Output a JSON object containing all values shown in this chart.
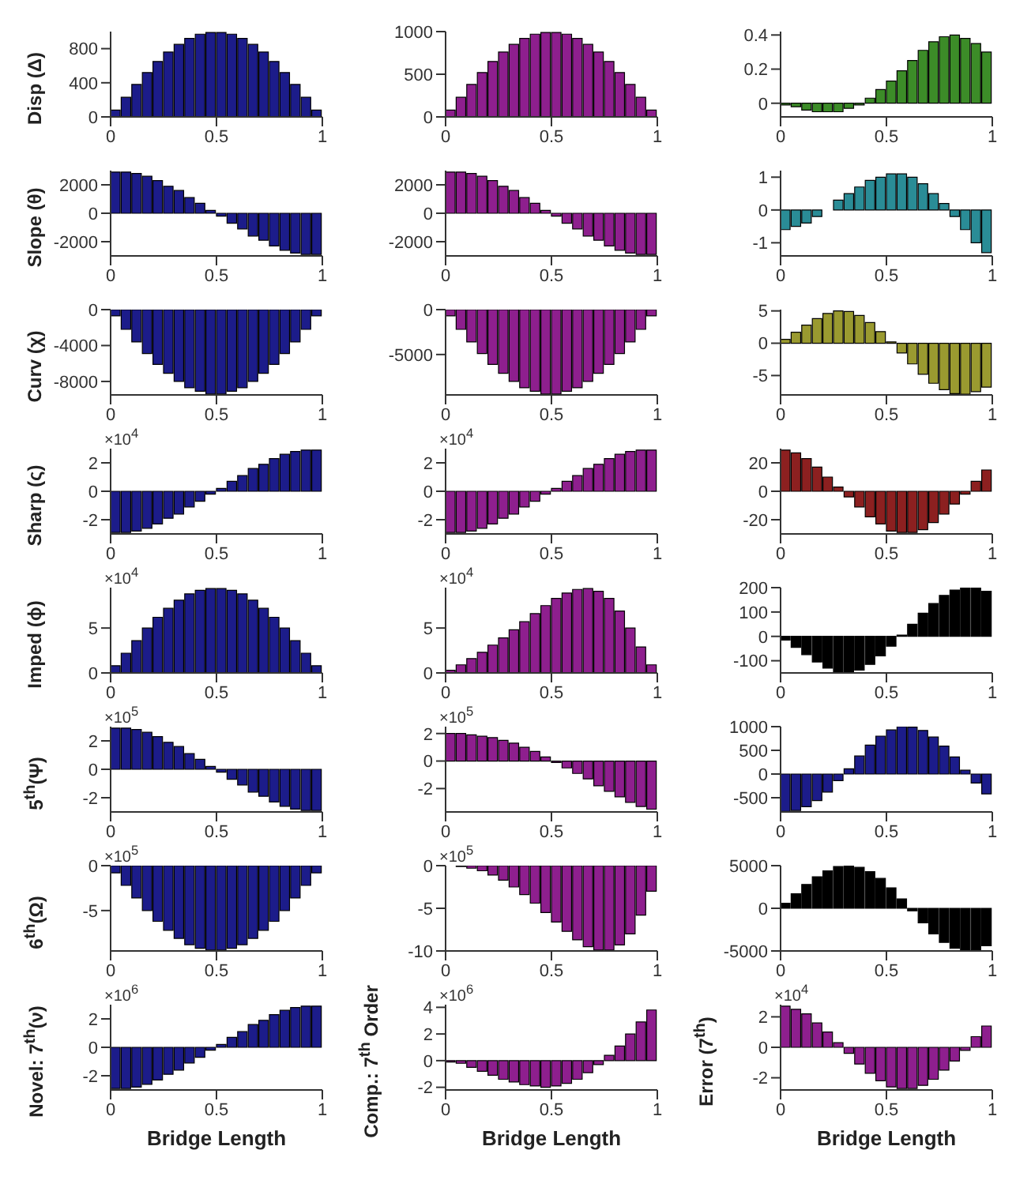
{
  "chart_data": [
    {
      "type": "bar",
      "ylabel": "Disp (Δ)",
      "x": [
        0.025,
        0.075,
        0.125,
        0.175,
        0.225,
        0.275,
        0.325,
        0.375,
        0.425,
        0.475,
        0.525,
        0.575,
        0.625,
        0.675,
        0.725,
        0.775,
        0.825,
        0.875,
        0.925,
        0.975
      ],
      "values": [
        80,
        230,
        380,
        520,
        650,
        760,
        850,
        920,
        970,
        990,
        990,
        970,
        920,
        850,
        760,
        650,
        520,
        380,
        230,
        80
      ],
      "color": "#1c1c8a",
      "xlim": [
        0,
        1
      ],
      "xticks": [
        0,
        0.5,
        1
      ],
      "ylim": [
        0,
        1000
      ],
      "yticks": [
        0,
        400,
        800
      ]
    },
    {
      "type": "bar",
      "x": [
        0.025,
        0.075,
        0.125,
        0.175,
        0.225,
        0.275,
        0.325,
        0.375,
        0.425,
        0.475,
        0.525,
        0.575,
        0.625,
        0.675,
        0.725,
        0.775,
        0.825,
        0.875,
        0.925,
        0.975
      ],
      "values": [
        80,
        230,
        380,
        520,
        650,
        760,
        850,
        920,
        970,
        990,
        990,
        970,
        920,
        850,
        760,
        650,
        520,
        380,
        230,
        80
      ],
      "color": "#8e1f8e",
      "xlim": [
        0,
        1
      ],
      "xticks": [
        0,
        0.5,
        1
      ],
      "ylim": [
        0,
        1000
      ],
      "yticks": [
        0,
        500,
        1000
      ]
    },
    {
      "type": "bar",
      "x": [
        0.025,
        0.075,
        0.125,
        0.175,
        0.225,
        0.275,
        0.325,
        0.375,
        0.425,
        0.475,
        0.525,
        0.575,
        0.625,
        0.675,
        0.725,
        0.775,
        0.825,
        0.875,
        0.925,
        0.975
      ],
      "values": [
        -0.01,
        -0.02,
        -0.04,
        -0.05,
        -0.05,
        -0.05,
        -0.03,
        -0.01,
        0.03,
        0.08,
        0.13,
        0.19,
        0.25,
        0.31,
        0.36,
        0.39,
        0.4,
        0.38,
        0.35,
        0.3
      ],
      "color": "#3c8c28",
      "xlim": [
        0,
        1
      ],
      "xticks": [
        0,
        0.5,
        1
      ],
      "ylim": [
        -0.08,
        0.42
      ],
      "yticks": [
        0,
        0.2,
        0.4
      ]
    },
    {
      "type": "bar",
      "ylabel": "Slope (θ)",
      "x": [
        0.025,
        0.075,
        0.125,
        0.175,
        0.225,
        0.275,
        0.325,
        0.375,
        0.425,
        0.475,
        0.525,
        0.575,
        0.625,
        0.675,
        0.725,
        0.775,
        0.825,
        0.875,
        0.925,
        0.975
      ],
      "values": [
        2900,
        2900,
        2800,
        2600,
        2300,
        1900,
        1600,
        1100,
        700,
        200,
        -200,
        -700,
        -1100,
        -1600,
        -1900,
        -2300,
        -2600,
        -2800,
        -2900,
        -2900
      ],
      "color": "#1c1c8a",
      "xlim": [
        0,
        1
      ],
      "xticks": [
        0,
        0.5,
        1
      ],
      "ylim": [
        -3000,
        3000
      ],
      "yticks": [
        -2000,
        0,
        2000
      ]
    },
    {
      "type": "bar",
      "x": [
        0.025,
        0.075,
        0.125,
        0.175,
        0.225,
        0.275,
        0.325,
        0.375,
        0.425,
        0.475,
        0.525,
        0.575,
        0.625,
        0.675,
        0.725,
        0.775,
        0.825,
        0.875,
        0.925,
        0.975
      ],
      "values": [
        2900,
        2900,
        2800,
        2600,
        2300,
        1900,
        1600,
        1100,
        700,
        200,
        -200,
        -700,
        -1100,
        -1600,
        -1900,
        -2300,
        -2600,
        -2800,
        -2900,
        -2900
      ],
      "color": "#8e1f8e",
      "xlim": [
        0,
        1
      ],
      "xticks": [
        0,
        0.5,
        1
      ],
      "ylim": [
        -3000,
        3000
      ],
      "yticks": [
        -2000,
        0,
        2000
      ]
    },
    {
      "type": "bar",
      "x": [
        0.025,
        0.075,
        0.125,
        0.175,
        0.225,
        0.275,
        0.325,
        0.375,
        0.425,
        0.475,
        0.525,
        0.575,
        0.625,
        0.675,
        0.725,
        0.775,
        0.825,
        0.875,
        0.925,
        0.975
      ],
      "values": [
        -0.6,
        -0.5,
        -0.4,
        -0.2,
        0,
        0.3,
        0.5,
        0.7,
        0.9,
        1,
        1.1,
        1.1,
        1,
        0.8,
        0.5,
        0.2,
        -0.2,
        -0.6,
        -1,
        -1.3
      ],
      "color": "#2a8c96",
      "xlim": [
        0,
        1
      ],
      "xticks": [
        0,
        0.5,
        1
      ],
      "ylim": [
        -1.4,
        1.2
      ],
      "yticks": [
        -1,
        0,
        1
      ]
    },
    {
      "type": "bar",
      "ylabel": "Curv (χ)",
      "x": [
        0.025,
        0.075,
        0.125,
        0.175,
        0.225,
        0.275,
        0.325,
        0.375,
        0.425,
        0.475,
        0.525,
        0.575,
        0.625,
        0.675,
        0.725,
        0.775,
        0.825,
        0.875,
        0.925,
        0.975
      ],
      "values": [
        -700,
        -2200,
        -3600,
        -4900,
        -6100,
        -7100,
        -8000,
        -8700,
        -9100,
        -9400,
        -9400,
        -9100,
        -8700,
        -8000,
        -7100,
        -6100,
        -4900,
        -3600,
        -2200,
        -700
      ],
      "color": "#1c1c8a",
      "xlim": [
        0,
        1
      ],
      "xticks": [
        0,
        0.5,
        1
      ],
      "ylim": [
        -9500,
        0
      ],
      "yticks": [
        -8000,
        -4000,
        0
      ]
    },
    {
      "type": "bar",
      "x": [
        0.025,
        0.075,
        0.125,
        0.175,
        0.225,
        0.275,
        0.325,
        0.375,
        0.425,
        0.475,
        0.525,
        0.575,
        0.625,
        0.675,
        0.725,
        0.775,
        0.825,
        0.875,
        0.925,
        0.975
      ],
      "values": [
        -700,
        -2200,
        -3600,
        -4900,
        -6100,
        -7100,
        -8000,
        -8700,
        -9100,
        -9400,
        -9400,
        -9100,
        -8700,
        -8000,
        -7100,
        -6100,
        -4900,
        -3600,
        -2200,
        -700
      ],
      "color": "#8e1f8e",
      "xlim": [
        0,
        1
      ],
      "xticks": [
        0,
        0.5,
        1
      ],
      "ylim": [
        -9500,
        0
      ],
      "yticks": [
        -5000,
        0
      ]
    },
    {
      "type": "bar",
      "x": [
        0.025,
        0.075,
        0.125,
        0.175,
        0.225,
        0.275,
        0.325,
        0.375,
        0.425,
        0.475,
        0.525,
        0.575,
        0.625,
        0.675,
        0.725,
        0.775,
        0.825,
        0.875,
        0.925,
        0.975
      ],
      "values": [
        0.6,
        1.7,
        2.8,
        3.8,
        4.6,
        5,
        4.9,
        4.3,
        3.2,
        1.8,
        0.2,
        -1.5,
        -3.2,
        -4.8,
        -6.2,
        -7.2,
        -7.8,
        -7.9,
        -7.5,
        -6.8
      ],
      "color": "#9a9a30",
      "xlim": [
        0,
        1
      ],
      "xticks": [
        0,
        0.5,
        1
      ],
      "ylim": [
        -8,
        5.2
      ],
      "yticks": [
        -5,
        0,
        5
      ]
    },
    {
      "type": "bar",
      "ylabel": "Sharp (ς)",
      "annotations": [
        "×10$^{4}$"
      ],
      "x": [
        0.025,
        0.075,
        0.125,
        0.175,
        0.225,
        0.275,
        0.325,
        0.375,
        0.425,
        0.475,
        0.525,
        0.575,
        0.625,
        0.675,
        0.725,
        0.775,
        0.825,
        0.875,
        0.925,
        0.975
      ],
      "values": [
        -2.9,
        -2.9,
        -2.8,
        -2.6,
        -2.3,
        -1.9,
        -1.6,
        -1.1,
        -0.7,
        -0.2,
        0.2,
        0.7,
        1.1,
        1.6,
        1.9,
        2.3,
        2.6,
        2.8,
        2.9,
        2.9
      ],
      "color": "#1c1c8a",
      "xlim": [
        0,
        1
      ],
      "xticks": [
        0,
        0.5,
        1
      ],
      "ylim": [
        -3,
        3
      ],
      "yticks": [
        -2,
        0,
        2
      ]
    },
    {
      "type": "bar",
      "annotations": [
        "×10$^{4}$"
      ],
      "x": [
        0.025,
        0.075,
        0.125,
        0.175,
        0.225,
        0.275,
        0.325,
        0.375,
        0.425,
        0.475,
        0.525,
        0.575,
        0.625,
        0.675,
        0.725,
        0.775,
        0.825,
        0.875,
        0.925,
        0.975
      ],
      "values": [
        -2.9,
        -2.9,
        -2.8,
        -2.6,
        -2.3,
        -1.9,
        -1.6,
        -1.1,
        -0.7,
        -0.2,
        0.2,
        0.7,
        1.1,
        1.6,
        1.9,
        2.3,
        2.6,
        2.8,
        2.9,
        2.9
      ],
      "color": "#8e1f8e",
      "xlim": [
        0,
        1
      ],
      "xticks": [
        0,
        0.5,
        1
      ],
      "ylim": [
        -3,
        3
      ],
      "yticks": [
        -2,
        0,
        2
      ]
    },
    {
      "type": "bar",
      "x": [
        0.025,
        0.075,
        0.125,
        0.175,
        0.225,
        0.275,
        0.325,
        0.375,
        0.425,
        0.475,
        0.525,
        0.575,
        0.625,
        0.675,
        0.725,
        0.775,
        0.825,
        0.875,
        0.925,
        0.975
      ],
      "values": [
        29,
        27,
        23,
        17,
        10,
        3,
        -4,
        -11,
        -18,
        -23,
        -28,
        -29,
        -29,
        -27,
        -22,
        -16,
        -9,
        -2,
        7,
        15
      ],
      "color": "#8c2020",
      "xlim": [
        0,
        1
      ],
      "xticks": [
        0,
        0.5,
        1
      ],
      "ylim": [
        -30,
        30
      ],
      "yticks": [
        -20,
        0,
        20
      ]
    },
    {
      "type": "bar",
      "ylabel": "Imped (ϕ)",
      "annotations": [
        "×10$^{4}$"
      ],
      "x": [
        0.025,
        0.075,
        0.125,
        0.175,
        0.225,
        0.275,
        0.325,
        0.375,
        0.425,
        0.475,
        0.525,
        0.575,
        0.625,
        0.675,
        0.725,
        0.775,
        0.825,
        0.875,
        0.925,
        0.975
      ],
      "values": [
        0.8,
        2.2,
        3.6,
        5,
        6.2,
        7.2,
        8.1,
        8.8,
        9.2,
        9.4,
        9.4,
        9.2,
        8.8,
        8.1,
        7.2,
        6.2,
        5,
        3.6,
        2.2,
        0.8
      ],
      "color": "#1c1c8a",
      "xlim": [
        0,
        1
      ],
      "xticks": [
        0,
        0.5,
        1
      ],
      "ylim": [
        0,
        9.5
      ],
      "yticks": [
        0,
        5
      ]
    },
    {
      "type": "bar",
      "annotations": [
        "×10$^{4}$"
      ],
      "x": [
        0.025,
        0.075,
        0.125,
        0.175,
        0.225,
        0.275,
        0.325,
        0.375,
        0.425,
        0.475,
        0.525,
        0.575,
        0.625,
        0.675,
        0.725,
        0.775,
        0.825,
        0.875,
        0.925,
        0.975
      ],
      "values": [
        0.3,
        0.9,
        1.6,
        2.3,
        3.1,
        3.9,
        4.8,
        5.7,
        6.6,
        7.5,
        8.3,
        8.9,
        9.3,
        9.4,
        9.1,
        8.3,
        6.9,
        5,
        2.9,
        0.9
      ],
      "color": "#8e1f8e",
      "xlim": [
        0,
        1
      ],
      "xticks": [
        0,
        0.5,
        1
      ],
      "ylim": [
        0,
        9.5
      ],
      "yticks": [
        0,
        5
      ]
    },
    {
      "type": "bar",
      "x": [
        0.025,
        0.075,
        0.125,
        0.175,
        0.225,
        0.275,
        0.325,
        0.375,
        0.425,
        0.475,
        0.525,
        0.575,
        0.625,
        0.675,
        0.725,
        0.775,
        0.825,
        0.875,
        0.925,
        0.975
      ],
      "values": [
        -15,
        -45,
        -75,
        -105,
        -130,
        -145,
        -148,
        -138,
        -115,
        -80,
        -40,
        5,
        50,
        95,
        135,
        168,
        190,
        200,
        198,
        185
      ],
      "color": "#000000",
      "xlim": [
        0,
        1
      ],
      "xticks": [
        0,
        0.5,
        1
      ],
      "ylim": [
        -150,
        200
      ],
      "yticks": [
        -100,
        0,
        100,
        200
      ]
    },
    {
      "type": "bar",
      "ylabel": "5$^{th}$(Ψ)",
      "annotations": [
        "×10$^{5}$"
      ],
      "x": [
        0.025,
        0.075,
        0.125,
        0.175,
        0.225,
        0.275,
        0.325,
        0.375,
        0.425,
        0.475,
        0.525,
        0.575,
        0.625,
        0.675,
        0.725,
        0.775,
        0.825,
        0.875,
        0.925,
        0.975
      ],
      "values": [
        2.9,
        2.9,
        2.8,
        2.6,
        2.3,
        1.9,
        1.6,
        1.1,
        0.7,
        0.2,
        -0.2,
        -0.7,
        -1.1,
        -1.6,
        -1.9,
        -2.3,
        -2.6,
        -2.8,
        -2.9,
        -2.9
      ],
      "color": "#1c1c8a",
      "xlim": [
        0,
        1
      ],
      "xticks": [
        0,
        0.5,
        1
      ],
      "ylim": [
        -3,
        3
      ],
      "yticks": [
        -2,
        0,
        2
      ]
    },
    {
      "type": "bar",
      "annotations": [
        "×10$^{5}$"
      ],
      "x": [
        0.025,
        0.075,
        0.125,
        0.175,
        0.225,
        0.275,
        0.325,
        0.375,
        0.425,
        0.475,
        0.525,
        0.575,
        0.625,
        0.675,
        0.725,
        0.775,
        0.825,
        0.875,
        0.925,
        0.975
      ],
      "values": [
        2,
        2,
        1.9,
        1.8,
        1.7,
        1.5,
        1.3,
        1,
        0.7,
        0.3,
        -0.1,
        -0.5,
        -0.9,
        -1.3,
        -1.8,
        -2.2,
        -2.6,
        -3,
        -3.3,
        -3.5
      ],
      "color": "#8e1f8e",
      "xlim": [
        0,
        1
      ],
      "xticks": [
        0,
        0.5,
        1
      ],
      "ylim": [
        -3.7,
        2.5
      ],
      "yticks": [
        -2,
        0,
        2
      ]
    },
    {
      "type": "bar",
      "x": [
        0.025,
        0.075,
        0.125,
        0.175,
        0.225,
        0.275,
        0.325,
        0.375,
        0.425,
        0.475,
        0.525,
        0.575,
        0.625,
        0.675,
        0.725,
        0.775,
        0.825,
        0.875,
        0.925,
        0.975
      ],
      "values": [
        -790,
        -770,
        -690,
        -560,
        -380,
        -140,
        110,
        380,
        610,
        800,
        930,
        1000,
        990,
        920,
        780,
        590,
        360,
        80,
        -190,
        -420
      ],
      "color": "#1c1c8a",
      "xlim": [
        0,
        1
      ],
      "xticks": [
        0,
        0.5,
        1
      ],
      "ylim": [
        -800,
        1000
      ],
      "yticks": [
        -500,
        0,
        500,
        1000
      ]
    },
    {
      "type": "bar",
      "ylabel": "6$^{th}$(Ω)",
      "annotations": [
        "×10$^{5}$"
      ],
      "x": [
        0.025,
        0.075,
        0.125,
        0.175,
        0.225,
        0.275,
        0.325,
        0.375,
        0.425,
        0.475,
        0.525,
        0.575,
        0.625,
        0.675,
        0.725,
        0.775,
        0.825,
        0.875,
        0.925,
        0.975
      ],
      "values": [
        -0.8,
        -2.2,
        -3.6,
        -5,
        -6.2,
        -7.2,
        -8.1,
        -8.8,
        -9.2,
        -9.4,
        -9.4,
        -9.2,
        -8.8,
        -8.1,
        -7.2,
        -6.2,
        -5,
        -3.6,
        -2.2,
        -0.8
      ],
      "color": "#1c1c8a",
      "xlim": [
        0,
        1
      ],
      "xticks": [
        0,
        0.5,
        1
      ],
      "ylim": [
        -9.5,
        0
      ],
      "yticks": [
        -5,
        0
      ]
    },
    {
      "type": "bar",
      "annotations": [
        "×10$^{5}$"
      ],
      "x": [
        0.025,
        0.075,
        0.125,
        0.175,
        0.225,
        0.275,
        0.325,
        0.375,
        0.425,
        0.475,
        0.525,
        0.575,
        0.625,
        0.675,
        0.725,
        0.775,
        0.825,
        0.875,
        0.925,
        0.975
      ],
      "values": [
        0,
        -0.1,
        -0.3,
        -0.6,
        -1.1,
        -1.7,
        -2.5,
        -3.4,
        -4.4,
        -5.5,
        -6.6,
        -7.7,
        -8.7,
        -9.5,
        -9.9,
        -9.9,
        -9.3,
        -8,
        -5.8,
        -3
      ],
      "color": "#8e1f8e",
      "xlim": [
        0,
        1
      ],
      "xticks": [
        0,
        0.5,
        1
      ],
      "ylim": [
        -10,
        0
      ],
      "yticks": [
        -10,
        -5,
        0
      ]
    },
    {
      "type": "bar",
      "x": [
        0.025,
        0.075,
        0.125,
        0.175,
        0.225,
        0.275,
        0.325,
        0.375,
        0.425,
        0.475,
        0.525,
        0.575,
        0.625,
        0.675,
        0.725,
        0.775,
        0.825,
        0.875,
        0.925,
        0.975
      ],
      "values": [
        600,
        1700,
        2800,
        3700,
        4400,
        4900,
        5000,
        4800,
        4300,
        3500,
        2400,
        1100,
        -300,
        -1700,
        -3000,
        -4000,
        -4700,
        -5000,
        -4900,
        -4400
      ],
      "color": "#000000",
      "xlim": [
        0,
        1
      ],
      "xticks": [
        0,
        0.5,
        1
      ],
      "ylim": [
        -5000,
        5000
      ],
      "yticks": [
        -5000,
        0,
        5000
      ]
    },
    {
      "type": "bar",
      "ylabel": "Novel: 7$^{th}$(ν)",
      "xlabel": "Bridge Length",
      "annotations": [
        "×10$^{6}$"
      ],
      "x": [
        0.025,
        0.075,
        0.125,
        0.175,
        0.225,
        0.275,
        0.325,
        0.375,
        0.425,
        0.475,
        0.525,
        0.575,
        0.625,
        0.675,
        0.725,
        0.775,
        0.825,
        0.875,
        0.925,
        0.975
      ],
      "values": [
        -2.9,
        -2.9,
        -2.8,
        -2.6,
        -2.3,
        -1.9,
        -1.6,
        -1.1,
        -0.7,
        -0.2,
        0.2,
        0.7,
        1.1,
        1.6,
        1.9,
        2.3,
        2.6,
        2.8,
        2.9,
        2.9
      ],
      "color": "#1c1c8a",
      "xlim": [
        0,
        1
      ],
      "xticks": [
        0,
        0.5,
        1
      ],
      "ylim": [
        -3,
        3
      ],
      "yticks": [
        -2,
        0,
        2
      ]
    },
    {
      "type": "bar",
      "ylabel": "Comp.: 7$^{th}$ Order",
      "xlabel": "Bridge Length",
      "annotations": [
        "×10$^{6}$"
      ],
      "x": [
        0.025,
        0.075,
        0.125,
        0.175,
        0.225,
        0.275,
        0.325,
        0.375,
        0.425,
        0.475,
        0.525,
        0.575,
        0.625,
        0.675,
        0.725,
        0.775,
        0.825,
        0.875,
        0.925,
        0.975
      ],
      "values": [
        -0.1,
        -0.2,
        -0.5,
        -0.8,
        -1.1,
        -1.4,
        -1.6,
        -1.8,
        -1.9,
        -2,
        -1.9,
        -1.7,
        -1.4,
        -0.9,
        -0.3,
        0.4,
        1.1,
        2,
        2.9,
        3.8
      ],
      "color": "#8e1f8e",
      "xlim": [
        0,
        1
      ],
      "xticks": [
        0,
        0.5,
        1
      ],
      "ylim": [
        -2.2,
        4.2
      ],
      "yticks": [
        -2,
        0,
        2,
        4
      ]
    },
    {
      "type": "bar",
      "ylabel": "Error (7$^{th}$)",
      "xlabel": "Bridge Length",
      "annotations": [
        "×10$^{4}$"
      ],
      "x": [
        0.025,
        0.075,
        0.125,
        0.175,
        0.225,
        0.275,
        0.325,
        0.375,
        0.425,
        0.475,
        0.525,
        0.575,
        0.625,
        0.675,
        0.725,
        0.775,
        0.825,
        0.875,
        0.925,
        0.975
      ],
      "values": [
        2.7,
        2.5,
        2.2,
        1.6,
        1,
        0.3,
        -0.4,
        -1.1,
        -1.7,
        -2.2,
        -2.6,
        -2.7,
        -2.7,
        -2.5,
        -2.1,
        -1.5,
        -0.9,
        -0.2,
        0.7,
        1.4
      ],
      "color": "#8e1f8e",
      "xlim": [
        0,
        1
      ],
      "xticks": [
        0,
        0.5,
        1
      ],
      "ylim": [
        -2.8,
        2.8
      ],
      "yticks": [
        -2,
        0,
        2
      ]
    }
  ]
}
